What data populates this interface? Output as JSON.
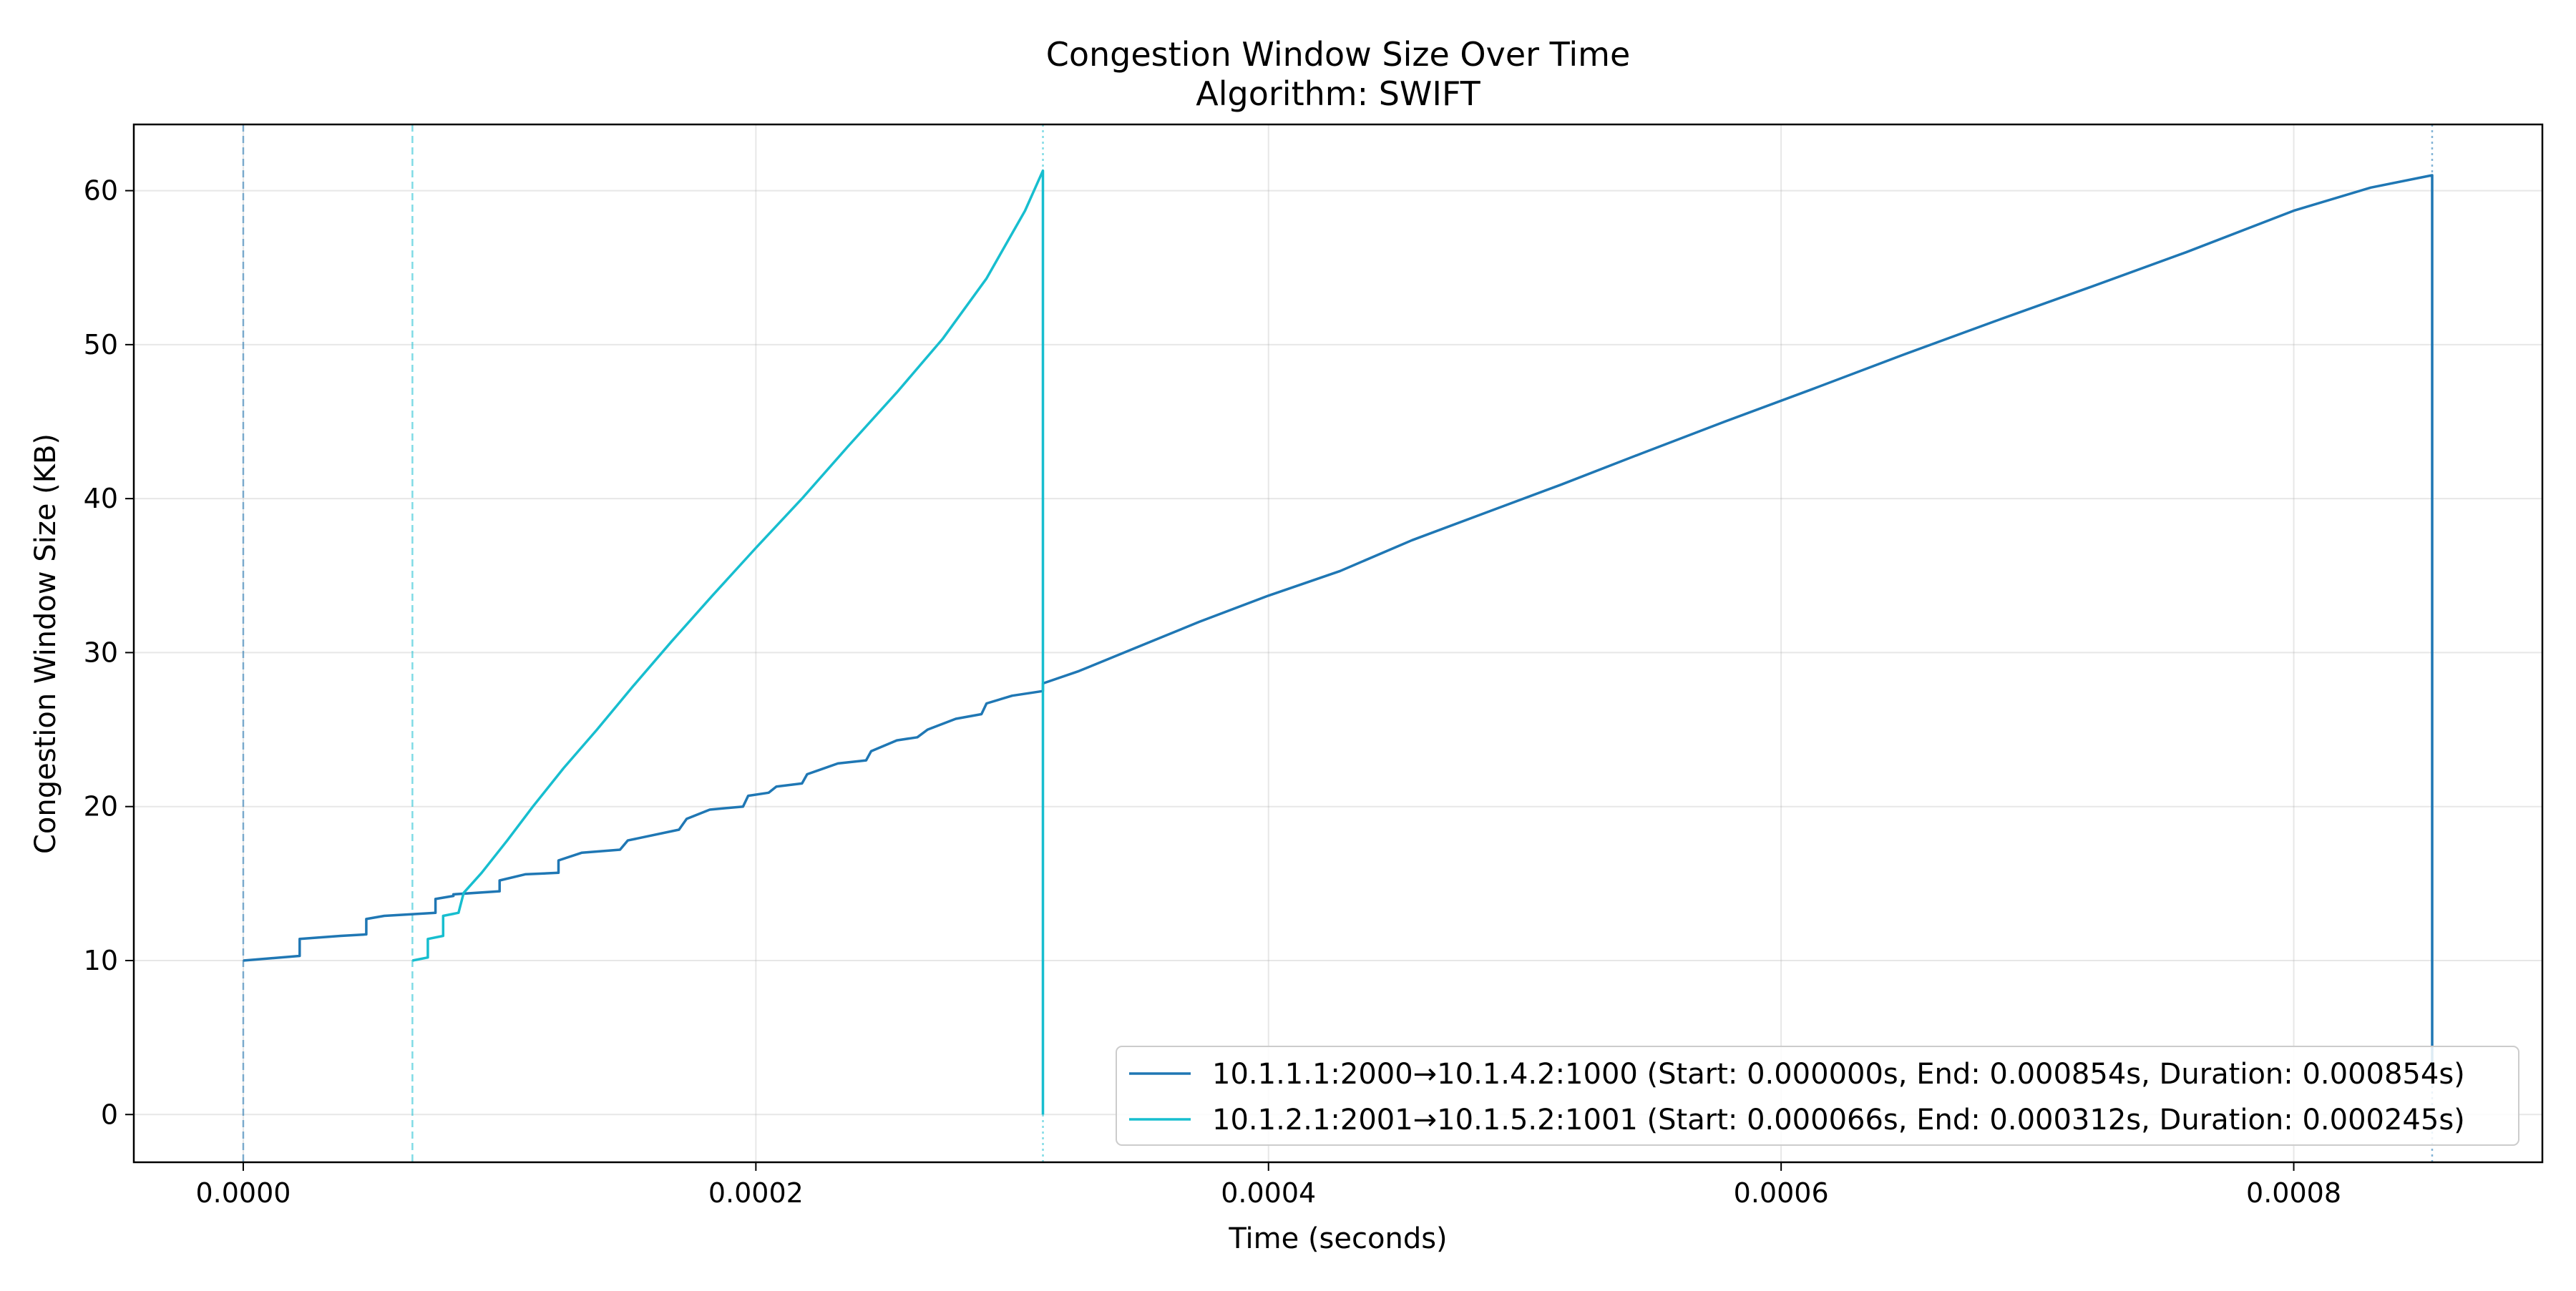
{
  "chart_data": {
    "type": "line",
    "title": "Congestion Window Size Over Time",
    "subtitle": "Algorithm: SWIFT",
    "xlabel": "Time (seconds)",
    "ylabel": "Congestion Window Size (KB)",
    "xlim": [
      -4.27e-05,
      0.000897
    ],
    "ylim": [
      -3.1,
      64.3
    ],
    "xticks": [
      0.0,
      0.0002,
      0.0004,
      0.0006,
      0.0008
    ],
    "xtick_labels": [
      "0.0000",
      "0.0002",
      "0.0004",
      "0.0006",
      "0.0008"
    ],
    "yticks": [
      0,
      10,
      20,
      30,
      40,
      50,
      60
    ],
    "ytick_labels": [
      "0",
      "10",
      "20",
      "30",
      "40",
      "50",
      "60"
    ],
    "grid": true,
    "legend_position": "lower-right",
    "series": [
      {
        "name": "10.1.1.1:2000→10.1.4.2:1000 (Start: 0.000000s, End: 0.000854s, Duration: 0.000854s)",
        "color": "#1f77b4",
        "start": 0.0,
        "end": 0.000854,
        "x": [
          0.0,
          2.2e-05,
          2.2e-05,
          3.8e-05,
          4.8e-05,
          4.8e-05,
          5.5e-05,
          7.5e-05,
          7.5e-05,
          8.2e-05,
          8.2e-05,
          0.0001,
          0.0001,
          0.00011,
          0.000123,
          0.000123,
          0.000132,
          0.000147,
          0.00015,
          0.00017,
          0.000173,
          0.000182,
          0.000195,
          0.000197,
          0.000205,
          0.000208,
          0.000218,
          0.00022,
          0.000232,
          0.000243,
          0.000245,
          0.000255,
          0.000263,
          0.000267,
          0.000278,
          0.000288,
          0.00029,
          0.0003,
          0.000312,
          0.000312,
          0.000326,
          0.000348,
          0.000373,
          0.0004,
          0.000428,
          0.000456,
          0.000485,
          0.000514,
          0.000545,
          0.000578,
          0.000612,
          0.000647,
          0.000683,
          0.00072,
          0.000758,
          0.0008,
          0.00083,
          0.000854,
          0.000854
        ],
        "values": [
          10.0,
          10.3,
          11.4,
          11.6,
          11.7,
          12.7,
          12.9,
          13.1,
          14.0,
          14.2,
          14.3,
          14.5,
          15.2,
          15.6,
          15.7,
          16.5,
          17.0,
          17.2,
          17.8,
          18.5,
          19.2,
          19.8,
          20.0,
          20.7,
          20.9,
          21.3,
          21.5,
          22.1,
          22.8,
          23.0,
          23.6,
          24.3,
          24.5,
          25.0,
          25.7,
          26.0,
          26.7,
          27.2,
          27.5,
          28.0,
          28.8,
          30.3,
          32.0,
          33.7,
          35.3,
          37.3,
          39.1,
          40.9,
          42.9,
          45.0,
          47.1,
          49.3,
          51.5,
          53.7,
          56.0,
          58.7,
          60.2,
          61.0,
          3.0
        ]
      },
      {
        "name": "10.1.2.1:2001→10.1.5.2:1001 (Start: 0.000066s, End: 0.000312s, Duration: 0.000245s)",
        "color": "#17becf",
        "start": 6.6e-05,
        "end": 0.000312,
        "x": [
          6.6e-05,
          7.2e-05,
          7.2e-05,
          7.8e-05,
          7.8e-05,
          8.4e-05,
          8.6e-05,
          9.3e-05,
          0.000103,
          0.000113,
          0.000125,
          0.000138,
          0.000152,
          0.000167,
          0.000183,
          0.0002,
          0.000218,
          0.000236,
          0.000255,
          0.000273,
          0.00029,
          0.000305,
          0.000312,
          0.000312
        ],
        "values": [
          10.0,
          10.2,
          11.4,
          11.6,
          12.9,
          13.1,
          14.4,
          15.7,
          17.8,
          20.0,
          22.5,
          25.0,
          27.8,
          30.7,
          33.7,
          36.8,
          40.0,
          43.4,
          46.9,
          50.4,
          54.3,
          58.7,
          61.3,
          0.0
        ]
      }
    ]
  }
}
